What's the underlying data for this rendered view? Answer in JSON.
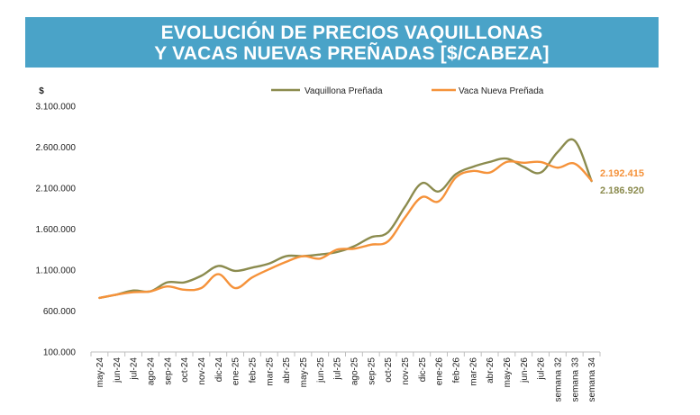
{
  "header": {
    "title_line1": "EVOLUCIÓN DE PRECIOS VAQUILLONAS",
    "title_line2": "Y VACAS NUEVAS PREÑADAS [$/CABEZA]"
  },
  "chart_data": {
    "type": "line",
    "title": "EVOLUCIÓN DE PRECIOS VAQUILLONAS Y VACAS NUEVAS PREÑADAS [$/CABEZA]",
    "ylabel": "$",
    "xlabel": "",
    "ylim": [
      100000,
      3100000
    ],
    "yticks": [
      100000,
      600000,
      1100000,
      1600000,
      2100000,
      2600000,
      3100000
    ],
    "ytick_labels": [
      "100.000",
      "600.000",
      "1.100.000",
      "1.600.000",
      "2.100.000",
      "2.600.000",
      "3.100.000"
    ],
    "grid": false,
    "legend_position": "top",
    "categories": [
      "may-24",
      "jun-24",
      "jul-24",
      "ago-24",
      "sep-24",
      "oct-24",
      "nov-24",
      "dic-24",
      "ene-25",
      "feb-25",
      "mar-25",
      "abr-25",
      "may-25",
      "jun-25",
      "jul-25",
      "ago-25",
      "sep-25",
      "oct-25",
      "nov-25",
      "dic-25",
      "ene-26",
      "feb-26",
      "mar-26",
      "abr-26",
      "may-26",
      "jun-26",
      "jul-26",
      "semana 32",
      "semana 33",
      "semana 34"
    ],
    "series": [
      {
        "name": "Vaquillona Preñada",
        "color": "#8b8b4e",
        "values": [
          760000,
          800000,
          850000,
          840000,
          950000,
          950000,
          1030000,
          1150000,
          1090000,
          1130000,
          1180000,
          1270000,
          1270000,
          1290000,
          1320000,
          1390000,
          1500000,
          1560000,
          1870000,
          2160000,
          2060000,
          2270000,
          2360000,
          2420000,
          2460000,
          2360000,
          2290000,
          2540000,
          2680000,
          2186920
        ]
      },
      {
        "name": "Vaca Nueva Preñada",
        "color": "#f5923a",
        "values": [
          760000,
          800000,
          830000,
          840000,
          900000,
          860000,
          880000,
          1050000,
          880000,
          1010000,
          1110000,
          1200000,
          1270000,
          1240000,
          1350000,
          1360000,
          1410000,
          1450000,
          1740000,
          1990000,
          1940000,
          2230000,
          2310000,
          2290000,
          2420000,
          2410000,
          2420000,
          2350000,
          2400000,
          2192415
        ]
      }
    ],
    "end_labels": [
      {
        "text": "2.192.415",
        "series": 1,
        "color": "#f5923a"
      },
      {
        "text": "2.186.920",
        "series": 0,
        "color": "#8b8b4e"
      }
    ]
  }
}
